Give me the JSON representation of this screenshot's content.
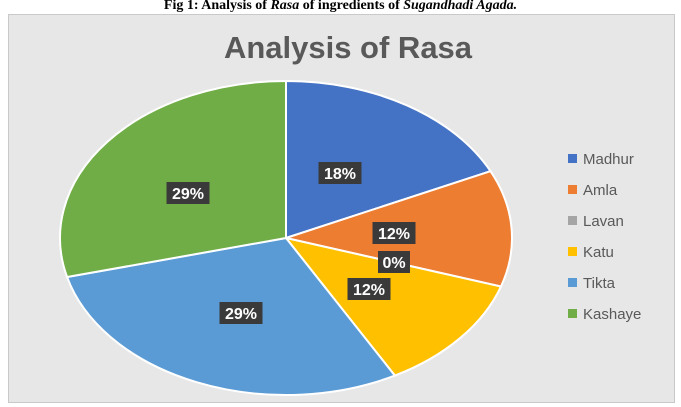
{
  "caption": {
    "prefix": "Fig 1: Analysis of ",
    "italic1": "Rasa",
    "middle": " of ingredients of ",
    "italic2": "Sugandhadi Agada."
  },
  "chart_data": {
    "type": "pie",
    "title": "Analysis of Rasa",
    "legend_position": "right",
    "categories": [
      "Madhur",
      "Amla",
      "Lavan",
      "Katu",
      "Tikta",
      "Kashaye"
    ],
    "values": [
      18,
      12,
      0,
      12,
      29,
      29
    ],
    "labels": [
      "18%",
      "12%",
      "0%",
      "12%",
      "29%",
      "29%"
    ],
    "colors": [
      "#4472c4",
      "#ed7d31",
      "#a5a5a5",
      "#ffc000",
      "#5b9bd5",
      "#70ad47"
    ]
  }
}
